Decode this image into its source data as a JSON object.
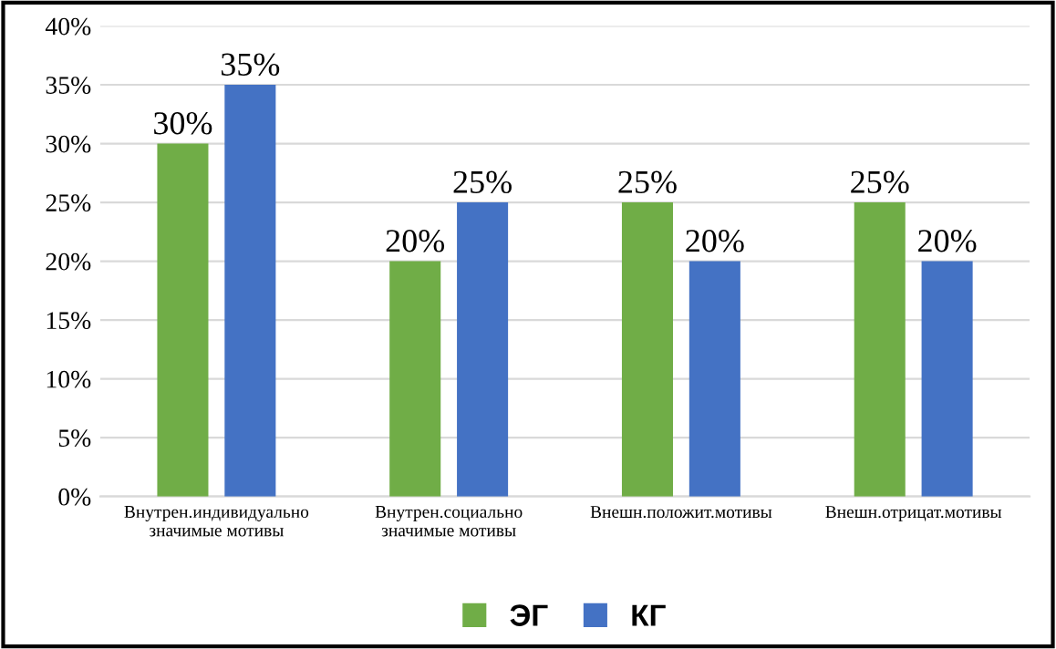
{
  "chart_data": {
    "type": "bar",
    "categories": [
      "Внутрен.индивидуально\nзначимые мотивы",
      "Внутрен.социально\nзначимые мотивы",
      "Внешн.положит.мотивы",
      "Внешн.отрицат.мотивы"
    ],
    "series": [
      {
        "name": "ЭГ",
        "color": "#70ad47",
        "values": [
          30,
          20,
          25,
          25
        ],
        "value_labels": [
          "30%",
          "20%",
          "25%",
          "25%"
        ]
      },
      {
        "name": "КГ",
        "color": "#4472c4",
        "values": [
          35,
          25,
          20,
          20
        ],
        "value_labels": [
          "35%",
          "25%",
          "20%",
          "20%"
        ]
      }
    ],
    "ylim": [
      0,
      40
    ],
    "yticks": [
      {
        "value": 0,
        "label": "0%"
      },
      {
        "value": 5,
        "label": "5%"
      },
      {
        "value": 10,
        "label": "10%"
      },
      {
        "value": 15,
        "label": "15%"
      },
      {
        "value": 20,
        "label": "20%"
      },
      {
        "value": 25,
        "label": "25%"
      },
      {
        "value": 30,
        "label": "30%"
      },
      {
        "value": 35,
        "label": "35%"
      },
      {
        "value": 40,
        "label": "40%"
      }
    ],
    "grid": "y",
    "legend": "bottom"
  }
}
